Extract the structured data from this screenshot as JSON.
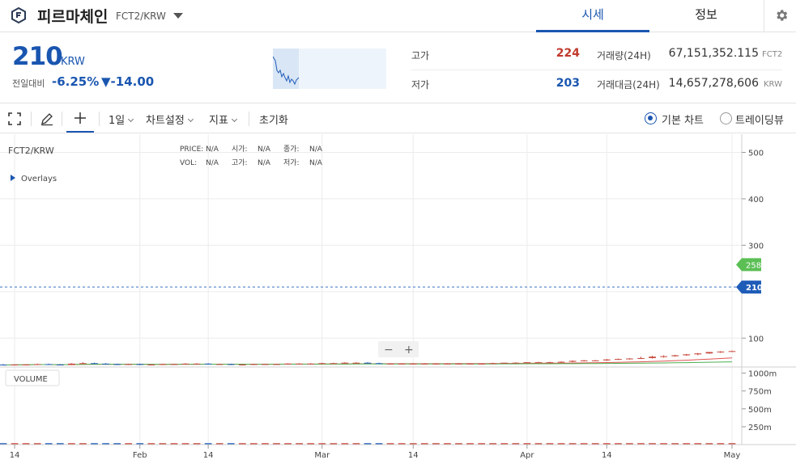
{
  "header": {
    "coin_name": "피르마체인",
    "pair": "FCT2/KRW",
    "tabs": [
      "시세",
      "정보"
    ]
  },
  "ticker": {
    "price": "210",
    "unit": "KRW",
    "change_label": "전일대비",
    "change_pct": "-6.25%",
    "change_abs": "▼-14.00",
    "high_label": "고가",
    "high": "224",
    "low_label": "저가",
    "low": "203",
    "volume_label": "거래량(24H)",
    "volume": "67,151,352.115",
    "volume_unit": "FCT2",
    "value_label": "거래대금(24H)",
    "value": "14,657,278,606",
    "value_unit": "KRW"
  },
  "toolbar": {
    "interval": "1일",
    "chart_settings": "차트설정",
    "indicators": "지표",
    "reset": "초기화",
    "basic_chart": "기본 차트",
    "tradingview": "트레이딩뷰"
  },
  "chart_info": {
    "symbol": "FCT2/KRW",
    "overlays": "Overlays",
    "price_label": "PRICE:",
    "open_label": "시가:",
    "close_label": "종가:",
    "vol_label": "VOL:",
    "high_label": "고가:",
    "low_label": "저가:",
    "na": "N/A",
    "volume_label": "VOLUME",
    "zoom_minus": "−",
    "zoom_plus": "+"
  },
  "colors": {
    "up": "#c9483e",
    "down": "#1f5cb8",
    "ma_short": "#e05252",
    "ma_long": "#4caf50",
    "accent": "#1a56b0"
  },
  "chart_data": {
    "type": "candlestick",
    "price_axis": {
      "ticks": [
        100,
        200,
        300,
        400,
        500
      ],
      "labels": [
        "100",
        "",
        "300",
        "400",
        "500"
      ],
      "range": [
        43,
        520
      ]
    },
    "volume_axis": {
      "ticks": [
        250,
        500,
        750,
        1000
      ],
      "labels": [
        "250m",
        "500m",
        "750m",
        "1000m"
      ],
      "range": [
        0,
        1040
      ]
    },
    "x_labels": [
      "14",
      "Feb",
      "14",
      "Mar",
      "14",
      "Apr",
      "14",
      "May"
    ],
    "last_price": "210",
    "ma_long_last": "258.22",
    "candles": [
      {
        "o": 43,
        "h": 44,
        "l": 42,
        "c": 42,
        "v": 20
      },
      {
        "o": 42,
        "h": 43,
        "l": 41,
        "c": 43,
        "v": 20
      },
      {
        "o": 43,
        "h": 44,
        "l": 42,
        "c": 43,
        "v": 20
      },
      {
        "o": 43,
        "h": 45,
        "l": 42,
        "c": 44,
        "v": 20
      },
      {
        "o": 44,
        "h": 45,
        "l": 43,
        "c": 43,
        "v": 20
      },
      {
        "o": 43,
        "h": 44,
        "l": 42,
        "c": 42,
        "v": 20
      },
      {
        "o": 42,
        "h": 46,
        "l": 42,
        "c": 45,
        "v": 20
      },
      {
        "o": 45,
        "h": 48,
        "l": 44,
        "c": 46,
        "v": 20
      },
      {
        "o": 46,
        "h": 47,
        "l": 44,
        "c": 45,
        "v": 20
      },
      {
        "o": 45,
        "h": 46,
        "l": 43,
        "c": 44,
        "v": 20
      },
      {
        "o": 44,
        "h": 45,
        "l": 42,
        "c": 43,
        "v": 20
      },
      {
        "o": 43,
        "h": 45,
        "l": 42,
        "c": 44,
        "v": 20
      },
      {
        "o": 44,
        "h": 45,
        "l": 42,
        "c": 43,
        "v": 20
      },
      {
        "o": 43,
        "h": 44,
        "l": 42,
        "c": 43,
        "v": 20
      },
      {
        "o": 43,
        "h": 45,
        "l": 42,
        "c": 44,
        "v": 20
      },
      {
        "o": 44,
        "h": 45,
        "l": 43,
        "c": 44,
        "v": 20
      },
      {
        "o": 44,
        "h": 46,
        "l": 43,
        "c": 45,
        "v": 20
      },
      {
        "o": 45,
        "h": 46,
        "l": 44,
        "c": 45,
        "v": 20
      },
      {
        "o": 45,
        "h": 46,
        "l": 43,
        "c": 44,
        "v": 20
      },
      {
        "o": 44,
        "h": 45,
        "l": 43,
        "c": 44,
        "v": 20
      },
      {
        "o": 44,
        "h": 45,
        "l": 42,
        "c": 43,
        "v": 20
      },
      {
        "o": 43,
        "h": 44,
        "l": 42,
        "c": 43,
        "v": 20
      },
      {
        "o": 43,
        "h": 45,
        "l": 42,
        "c": 44,
        "v": 20
      },
      {
        "o": 44,
        "h": 45,
        "l": 43,
        "c": 44,
        "v": 20
      },
      {
        "o": 44,
        "h": 45,
        "l": 43,
        "c": 44,
        "v": 20
      },
      {
        "o": 44,
        "h": 46,
        "l": 43,
        "c": 45,
        "v": 20
      },
      {
        "o": 45,
        "h": 46,
        "l": 44,
        "c": 45,
        "v": 20
      },
      {
        "o": 45,
        "h": 46,
        "l": 44,
        "c": 45,
        "v": 20
      },
      {
        "o": 45,
        "h": 47,
        "l": 44,
        "c": 46,
        "v": 20
      },
      {
        "o": 46,
        "h": 47,
        "l": 45,
        "c": 46,
        "v": 20
      },
      {
        "o": 46,
        "h": 48,
        "l": 45,
        "c": 47,
        "v": 20
      },
      {
        "o": 47,
        "h": 48,
        "l": 46,
        "c": 47,
        "v": 20
      },
      {
        "o": 47,
        "h": 48,
        "l": 46,
        "c": 46,
        "v": 20
      },
      {
        "o": 46,
        "h": 47,
        "l": 45,
        "c": 45,
        "v": 20
      },
      {
        "o": 45,
        "h": 46,
        "l": 44,
        "c": 45,
        "v": 20
      },
      {
        "o": 45,
        "h": 46,
        "l": 44,
        "c": 45,
        "v": 20
      },
      {
        "o": 45,
        "h": 46,
        "l": 44,
        "c": 45,
        "v": 20
      },
      {
        "o": 45,
        "h": 46,
        "l": 44,
        "c": 45,
        "v": 20
      },
      {
        "o": 45,
        "h": 46,
        "l": 44,
        "c": 45,
        "v": 20
      },
      {
        "o": 45,
        "h": 46,
        "l": 44,
        "c": 45,
        "v": 20
      },
      {
        "o": 45,
        "h": 46,
        "l": 44,
        "c": 45,
        "v": 20
      },
      {
        "o": 45,
        "h": 46,
        "l": 44,
        "c": 45,
        "v": 20
      },
      {
        "o": 45,
        "h": 46,
        "l": 44,
        "c": 45,
        "v": 20
      },
      {
        "o": 45,
        "h": 47,
        "l": 44,
        "c": 46,
        "v": 20
      },
      {
        "o": 46,
        "h": 47,
        "l": 45,
        "c": 47,
        "v": 20
      },
      {
        "o": 47,
        "h": 48,
        "l": 46,
        "c": 47,
        "v": 20
      },
      {
        "o": 47,
        "h": 48,
        "l": 46,
        "c": 48,
        "v": 20
      },
      {
        "o": 48,
        "h": 49,
        "l": 47,
        "c": 48,
        "v": 20
      },
      {
        "o": 48,
        "h": 49,
        "l": 47,
        "c": 48,
        "v": 20
      },
      {
        "o": 48,
        "h": 50,
        "l": 47,
        "c": 49,
        "v": 20
      },
      {
        "o": 49,
        "h": 52,
        "l": 48,
        "c": 51,
        "v": 20
      },
      {
        "o": 51,
        "h": 53,
        "l": 50,
        "c": 52,
        "v": 20
      },
      {
        "o": 52,
        "h": 53,
        "l": 51,
        "c": 52,
        "v": 20
      },
      {
        "o": 52,
        "h": 55,
        "l": 51,
        "c": 54,
        "v": 20
      },
      {
        "o": 54,
        "h": 56,
        "l": 53,
        "c": 55,
        "v": 20
      },
      {
        "o": 55,
        "h": 57,
        "l": 54,
        "c": 56,
        "v": 20
      },
      {
        "o": 56,
        "h": 60,
        "l": 55,
        "c": 57,
        "v": 20
      },
      {
        "o": 57,
        "h": 62,
        "l": 56,
        "c": 60,
        "v": 20
      },
      {
        "o": 60,
        "h": 63,
        "l": 58,
        "c": 61,
        "v": 20
      },
      {
        "o": 61,
        "h": 64,
        "l": 60,
        "c": 63,
        "v": 20
      },
      {
        "o": 63,
        "h": 66,
        "l": 62,
        "c": 65,
        "v": 20
      },
      {
        "o": 65,
        "h": 68,
        "l": 63,
        "c": 67,
        "v": 20
      },
      {
        "o": 67,
        "h": 70,
        "l": 66,
        "c": 70,
        "v": 20
      },
      {
        "o": 70,
        "h": 72,
        "l": 68,
        "c": 71,
        "v": 20
      },
      {
        "o": 71,
        "h": 73,
        "l": 70,
        "c": 72,
        "v": 20
      }
    ]
  }
}
